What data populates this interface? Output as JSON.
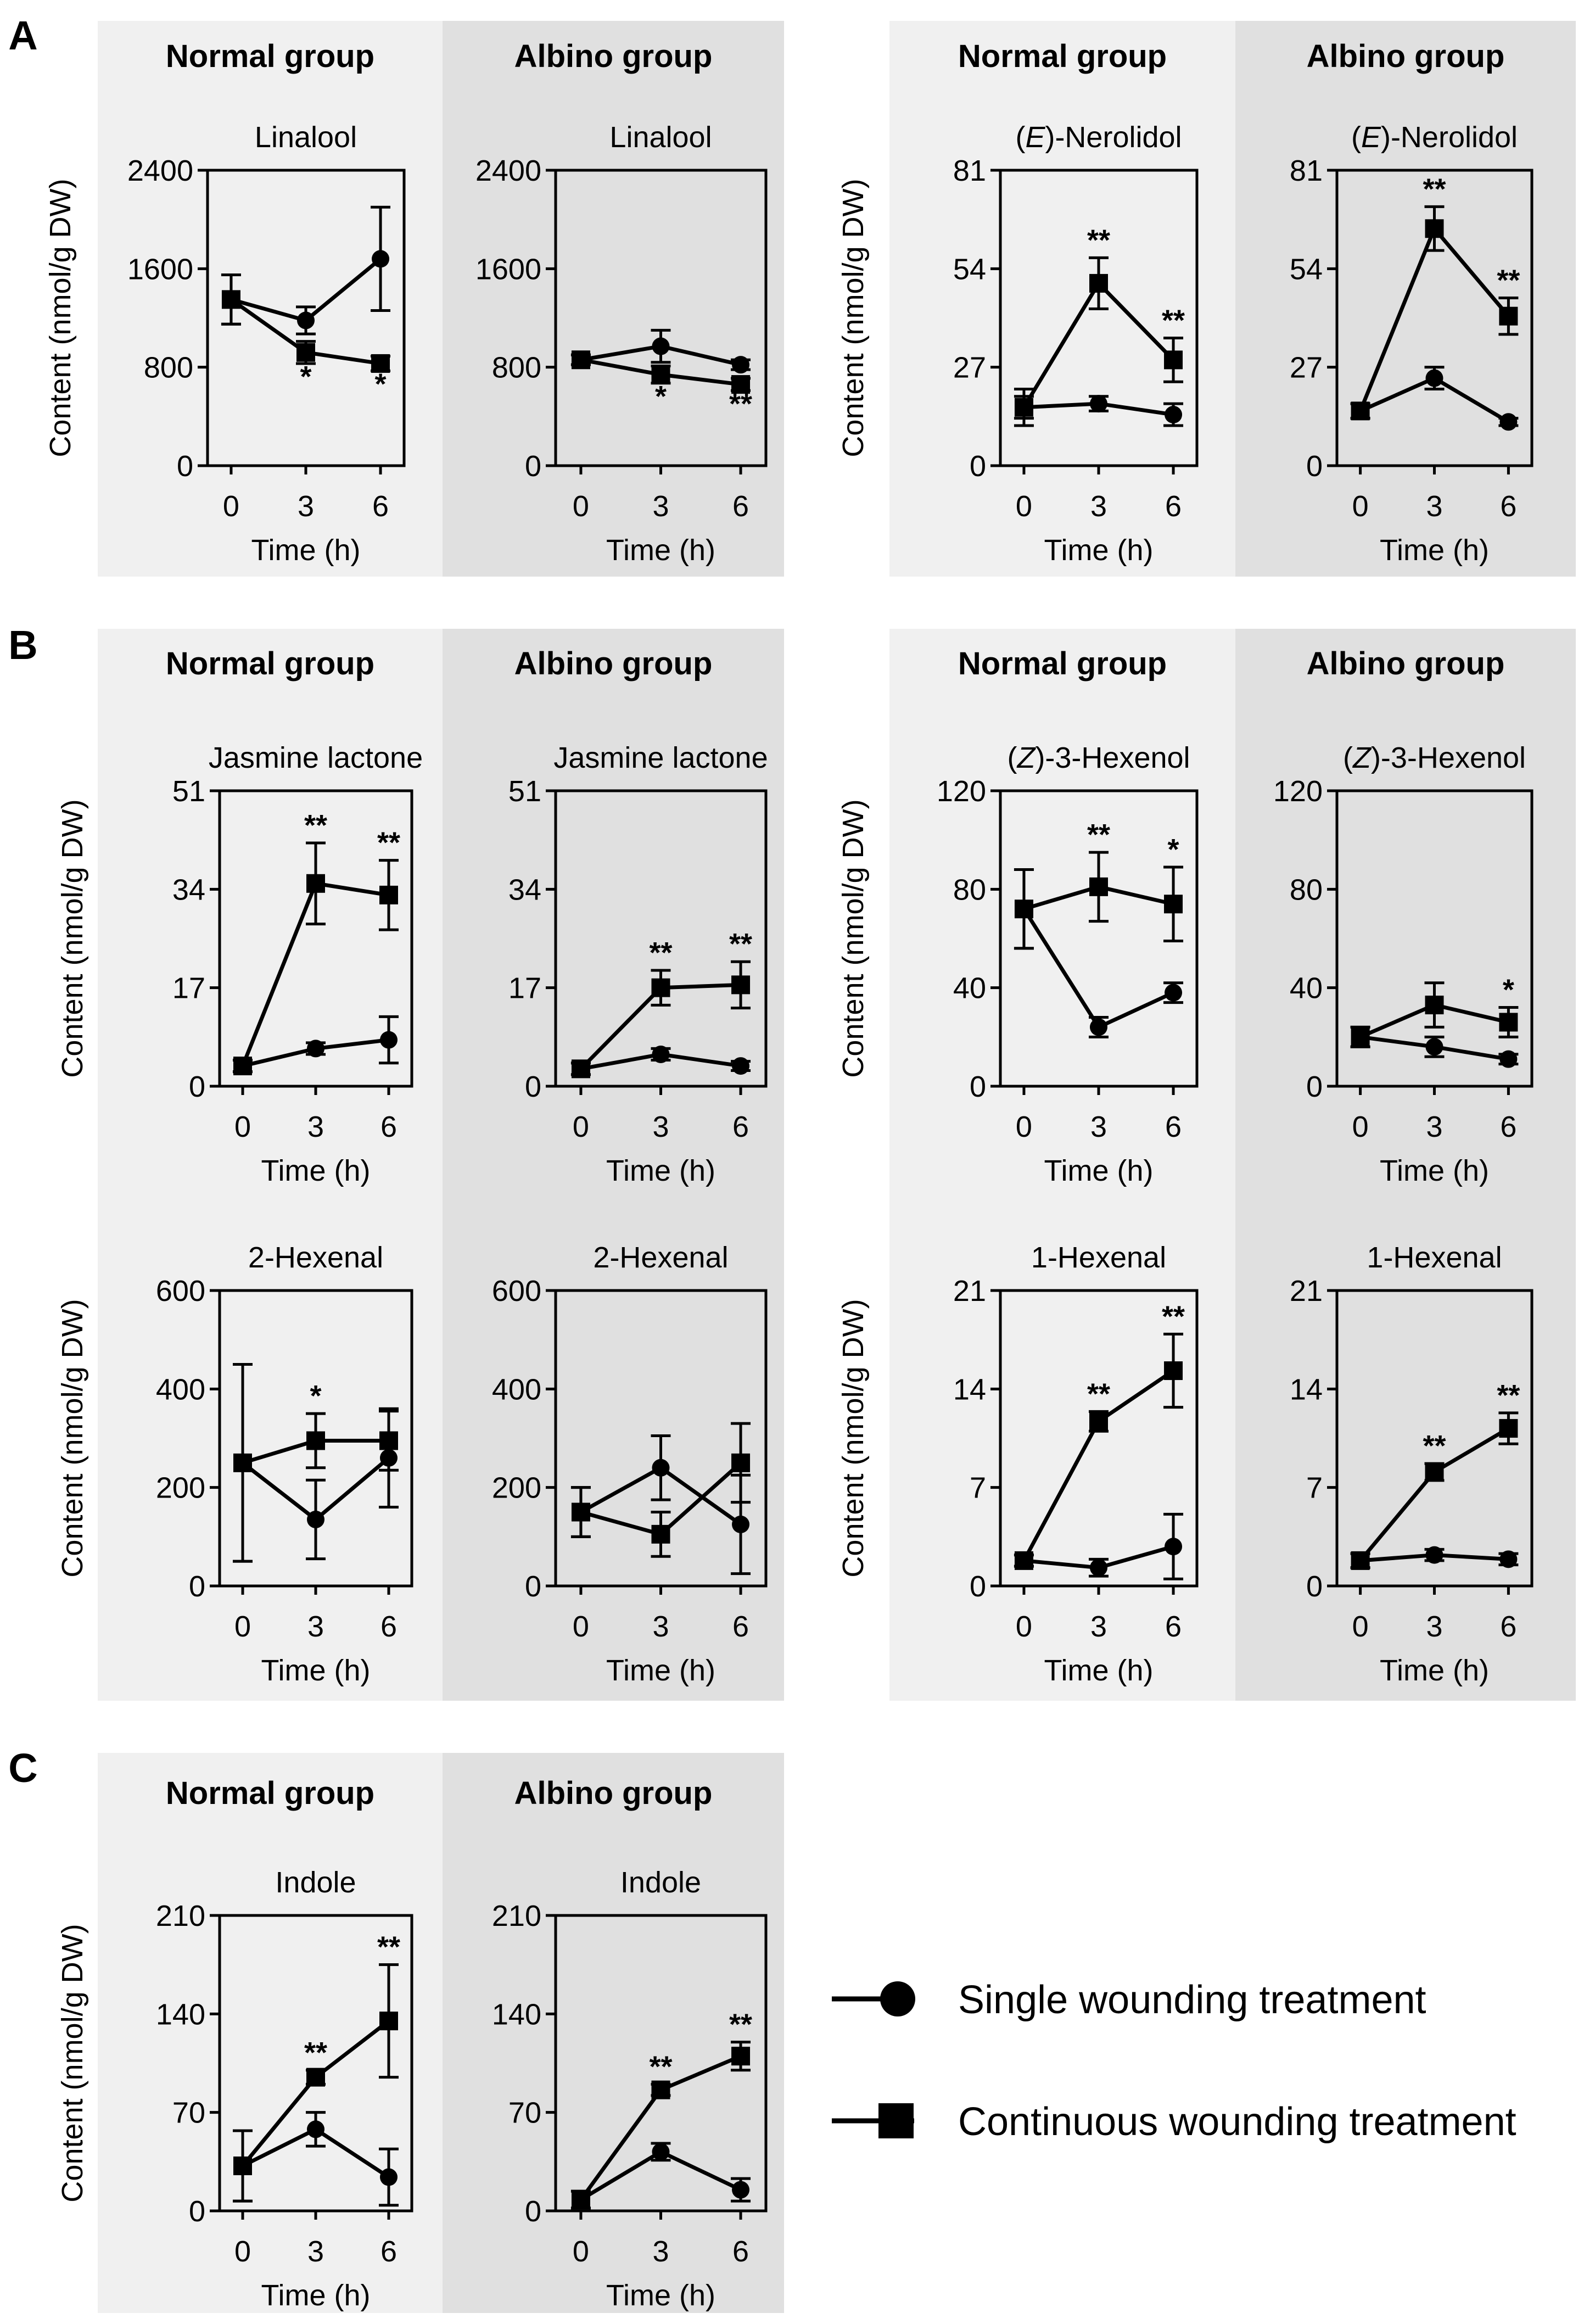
{
  "figure": {
    "panel_labels": [
      "A",
      "B",
      "C"
    ],
    "group_labels": {
      "normal": "Normal group",
      "albino": "Albino group"
    },
    "xlabel": "Time (h)",
    "ylabel": "Content (nmol/g DW)",
    "colors": {
      "normal_bg": "#f0f0f0",
      "albino_bg": "#e0e0e0",
      "ink": "#000000"
    }
  },
  "legend": {
    "items": [
      {
        "label": "Single wounding treatment",
        "marker": "circle"
      },
      {
        "label": "Continuous wounding treatment",
        "marker": "square"
      }
    ]
  },
  "chart_data": [
    {
      "id": "A1",
      "type": "line",
      "title": "Linalool",
      "title_italic": "",
      "group": "Normal group",
      "x": [
        0,
        3,
        6
      ],
      "ylim": [
        0,
        2400
      ],
      "yticks": [
        0,
        800,
        1600,
        2400
      ],
      "series": [
        {
          "name": "Single wounding treatment",
          "marker": "circle",
          "values": [
            1350,
            1180,
            1680
          ],
          "errors": [
            200,
            110,
            420
          ],
          "sig": [
            "",
            "",
            ""
          ]
        },
        {
          "name": "Continuous wounding treatment",
          "marker": "square",
          "values": [
            1350,
            920,
            830
          ],
          "errors": [
            200,
            90,
            60
          ],
          "sig": [
            "",
            "*",
            "*"
          ]
        }
      ]
    },
    {
      "id": "A2",
      "type": "line",
      "title": "Linalool",
      "title_italic": "",
      "group": "Albino group",
      "x": [
        0,
        3,
        6
      ],
      "ylim": [
        0,
        2400
      ],
      "yticks": [
        0,
        800,
        1600,
        2400
      ],
      "series": [
        {
          "name": "Single wounding treatment",
          "marker": "circle",
          "values": [
            860,
            970,
            820
          ],
          "errors": [
            40,
            130,
            40
          ],
          "sig": [
            "",
            "",
            ""
          ]
        },
        {
          "name": "Continuous wounding treatment",
          "marker": "square",
          "values": [
            860,
            740,
            660
          ],
          "errors": [
            40,
            70,
            50
          ],
          "sig": [
            "",
            "*",
            "**"
          ]
        }
      ]
    },
    {
      "id": "A3",
      "type": "line",
      "title": "-Nerolidol",
      "title_italic": "E",
      "group": "Normal group",
      "x": [
        0,
        3,
        6
      ],
      "ylim": [
        0,
        81
      ],
      "yticks": [
        0,
        27,
        54,
        81
      ],
      "series": [
        {
          "name": "Single wounding treatment",
          "marker": "circle",
          "values": [
            16,
            17,
            14
          ],
          "errors": [
            3,
            2,
            3
          ],
          "sig": [
            "",
            "",
            ""
          ]
        },
        {
          "name": "Continuous wounding treatment",
          "marker": "square",
          "values": [
            16,
            50,
            29
          ],
          "errors": [
            5,
            7,
            6
          ],
          "sig": [
            "",
            "**",
            "**"
          ]
        }
      ]
    },
    {
      "id": "A4",
      "type": "line",
      "title": "-Nerolidol",
      "title_italic": "E",
      "group": "Albino group",
      "x": [
        0,
        3,
        6
      ],
      "ylim": [
        0,
        81
      ],
      "yticks": [
        0,
        27,
        54,
        81
      ],
      "series": [
        {
          "name": "Single wounding treatment",
          "marker": "circle",
          "values": [
            15,
            24,
            12
          ],
          "errors": [
            2,
            3,
            1
          ],
          "sig": [
            "",
            "",
            ""
          ]
        },
        {
          "name": "Continuous wounding treatment",
          "marker": "square",
          "values": [
            15,
            65,
            41
          ],
          "errors": [
            2,
            6,
            5
          ],
          "sig": [
            "",
            "**",
            "**"
          ]
        }
      ]
    },
    {
      "id": "B1",
      "type": "line",
      "title": "Jasmine lactone",
      "title_italic": "",
      "group": "Normal group",
      "x": [
        0,
        3,
        6
      ],
      "ylim": [
        0,
        51
      ],
      "yticks": [
        0,
        17,
        34,
        51
      ],
      "series": [
        {
          "name": "Single wounding treatment",
          "marker": "circle",
          "values": [
            3.5,
            6.5,
            8
          ],
          "errors": [
            1,
            1,
            4
          ],
          "sig": [
            "",
            "",
            ""
          ]
        },
        {
          "name": "Continuous wounding treatment",
          "marker": "square",
          "values": [
            3.5,
            35,
            33
          ],
          "errors": [
            1,
            7,
            6
          ],
          "sig": [
            "",
            "**",
            "**"
          ]
        }
      ]
    },
    {
      "id": "B2",
      "type": "line",
      "title": "Jasmine lactone",
      "title_italic": "",
      "group": "Albino group",
      "x": [
        0,
        3,
        6
      ],
      "ylim": [
        0,
        51
      ],
      "yticks": [
        0,
        17,
        34,
        51
      ],
      "series": [
        {
          "name": "Single wounding treatment",
          "marker": "circle",
          "values": [
            3,
            5.5,
            3.5
          ],
          "errors": [
            1,
            1,
            0.8
          ],
          "sig": [
            "",
            "",
            ""
          ]
        },
        {
          "name": "Continuous wounding treatment",
          "marker": "square",
          "values": [
            3,
            17,
            17.5
          ],
          "errors": [
            1,
            3,
            4
          ],
          "sig": [
            "",
            "**",
            "**"
          ]
        }
      ]
    },
    {
      "id": "B3",
      "type": "line",
      "title": "-3-Hexenol",
      "title_italic": "Z",
      "group": "Normal group",
      "x": [
        0,
        3,
        6
      ],
      "ylim": [
        0,
        120
      ],
      "yticks": [
        0,
        40,
        80,
        120
      ],
      "series": [
        {
          "name": "Single wounding treatment",
          "marker": "circle",
          "values": [
            72,
            24,
            38
          ],
          "errors": [
            16,
            4,
            4
          ],
          "sig": [
            "",
            "",
            ""
          ]
        },
        {
          "name": "Continuous wounding treatment",
          "marker": "square",
          "values": [
            72,
            81,
            74
          ],
          "errors": [
            16,
            14,
            15
          ],
          "sig": [
            "",
            "**",
            "*"
          ]
        }
      ]
    },
    {
      "id": "B4",
      "type": "line",
      "title": "-3-Hexenol",
      "title_italic": "Z",
      "group": "Albino group",
      "x": [
        0,
        3,
        6
      ],
      "ylim": [
        0,
        120
      ],
      "yticks": [
        0,
        40,
        80,
        120
      ],
      "series": [
        {
          "name": "Single wounding treatment",
          "marker": "circle",
          "values": [
            20,
            16,
            11
          ],
          "errors": [
            4,
            4,
            2
          ],
          "sig": [
            "",
            "",
            ""
          ]
        },
        {
          "name": "Continuous wounding treatment",
          "marker": "square",
          "values": [
            20,
            33,
            26
          ],
          "errors": [
            4,
            9,
            6
          ],
          "sig": [
            "",
            "",
            "*"
          ]
        }
      ]
    },
    {
      "id": "B5",
      "type": "line",
      "title": "2-Hexenal",
      "title_italic": "",
      "group": "Normal group",
      "x": [
        0,
        3,
        6
      ],
      "ylim": [
        0,
        600
      ],
      "yticks": [
        0,
        200,
        400,
        600
      ],
      "series": [
        {
          "name": "Single wounding treatment",
          "marker": "circle",
          "values": [
            250,
            135,
            260
          ],
          "errors": [
            200,
            80,
            100
          ],
          "sig": [
            "",
            "",
            ""
          ]
        },
        {
          "name": "Continuous wounding treatment",
          "marker": "square",
          "values": [
            250,
            295,
            295
          ],
          "errors": [
            200,
            55,
            60
          ],
          "sig": [
            "",
            "*",
            ""
          ]
        }
      ]
    },
    {
      "id": "B6",
      "type": "line",
      "title": "2-Hexenal",
      "title_italic": "",
      "group": "Albino group",
      "x": [
        0,
        3,
        6
      ],
      "ylim": [
        0,
        600
      ],
      "yticks": [
        0,
        200,
        400,
        600
      ],
      "series": [
        {
          "name": "Single wounding treatment",
          "marker": "circle",
          "values": [
            150,
            240,
            125
          ],
          "errors": [
            50,
            65,
            100
          ],
          "sig": [
            "",
            "",
            ""
          ]
        },
        {
          "name": "Continuous wounding treatment",
          "marker": "square",
          "values": [
            150,
            105,
            250
          ],
          "errors": [
            50,
            45,
            80
          ],
          "sig": [
            "",
            "",
            ""
          ]
        }
      ]
    },
    {
      "id": "B7",
      "type": "line",
      "title": "1-Hexenal",
      "title_italic": "",
      "group": "Normal group",
      "x": [
        0,
        3,
        6
      ],
      "ylim": [
        0,
        21
      ],
      "yticks": [
        0,
        7,
        14,
        21
      ],
      "series": [
        {
          "name": "Single wounding treatment",
          "marker": "circle",
          "values": [
            1.8,
            1.3,
            2.8
          ],
          "errors": [
            0.4,
            0.6,
            2.3
          ],
          "sig": [
            "",
            "",
            ""
          ]
        },
        {
          "name": "Continuous wounding treatment",
          "marker": "square",
          "values": [
            1.8,
            11.7,
            15.3
          ],
          "errors": [
            0.4,
            0.7,
            2.6
          ],
          "sig": [
            "",
            "**",
            "**"
          ]
        }
      ]
    },
    {
      "id": "B8",
      "type": "line",
      "title": "1-Hexenal",
      "title_italic": "",
      "group": "Albino group",
      "x": [
        0,
        3,
        6
      ],
      "ylim": [
        0,
        21
      ],
      "yticks": [
        0,
        7,
        14,
        21
      ],
      "series": [
        {
          "name": "Single wounding treatment",
          "marker": "circle",
          "values": [
            1.8,
            2.2,
            1.9
          ],
          "errors": [
            0.5,
            0.4,
            0.4
          ],
          "sig": [
            "",
            "",
            ""
          ]
        },
        {
          "name": "Continuous wounding treatment",
          "marker": "square",
          "values": [
            1.8,
            8.1,
            11.2
          ],
          "errors": [
            0.5,
            0.6,
            1.1
          ],
          "sig": [
            "",
            "**",
            "**"
          ]
        }
      ]
    },
    {
      "id": "C1",
      "type": "line",
      "title": "Indole",
      "title_italic": "",
      "group": "Normal group",
      "x": [
        0,
        3,
        6
      ],
      "ylim": [
        0,
        210
      ],
      "yticks": [
        0,
        70,
        140,
        210
      ],
      "series": [
        {
          "name": "Single wounding treatment",
          "marker": "circle",
          "values": [
            32,
            58,
            24
          ],
          "errors": [
            25,
            12,
            20
          ],
          "sig": [
            "",
            "",
            ""
          ]
        },
        {
          "name": "Continuous wounding treatment",
          "marker": "square",
          "values": [
            32,
            95,
            135
          ],
          "errors": [
            25,
            5,
            40
          ],
          "sig": [
            "",
            "**",
            "**"
          ]
        }
      ]
    },
    {
      "id": "C2",
      "type": "line",
      "title": "Indole",
      "title_italic": "",
      "group": "Albino group",
      "x": [
        0,
        3,
        6
      ],
      "ylim": [
        0,
        210
      ],
      "yticks": [
        0,
        70,
        140,
        210
      ],
      "series": [
        {
          "name": "Single wounding treatment",
          "marker": "circle",
          "values": [
            8,
            42,
            15
          ],
          "errors": [
            6,
            6,
            8
          ],
          "sig": [
            "",
            "",
            ""
          ]
        },
        {
          "name": "Continuous wounding treatment",
          "marker": "square",
          "values": [
            8,
            86,
            110
          ],
          "errors": [
            6,
            4,
            10
          ],
          "sig": [
            "",
            "**",
            "**"
          ]
        }
      ]
    }
  ]
}
